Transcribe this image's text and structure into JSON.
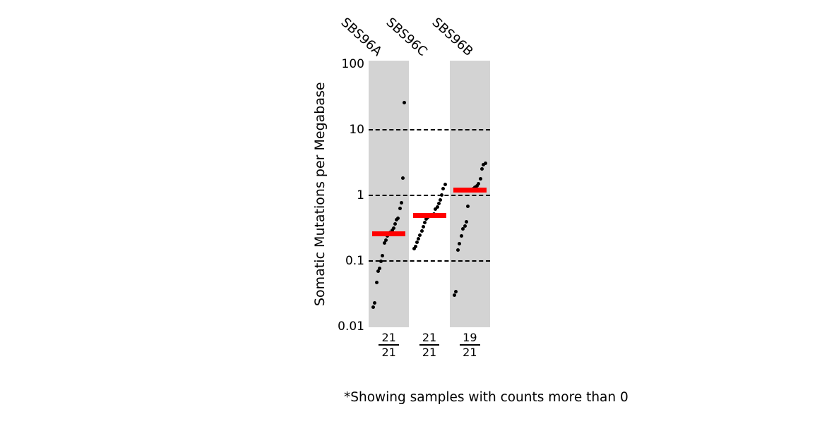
{
  "chart_data": {
    "type": "scatter",
    "subtype": "tmb-strip-plot",
    "title": "",
    "ylabel": "Somatic Mutations per Megabase",
    "yscale": "log",
    "ylim": [
      0.01,
      100
    ],
    "ytick_labels": [
      "100",
      "10",
      "1",
      "0.1",
      "0.01"
    ],
    "ytick_values": [
      100,
      10,
      1,
      0.1,
      0.01
    ],
    "gridline_values": [
      10,
      1,
      0.1
    ],
    "grid_style": "dashed",
    "categories": [
      "SBS96A",
      "SBS96C",
      "SBS96B"
    ],
    "column_shaded": [
      true,
      false,
      true
    ],
    "sample_counts": [
      {
        "shown": "21",
        "total": "21"
      },
      {
        "shown": "21",
        "total": "21"
      },
      {
        "shown": "19",
        "total": "21"
      }
    ],
    "medians": [
      0.26,
      0.49,
      1.2
    ],
    "series": [
      {
        "name": "SBS96A",
        "values": [
          0.02,
          0.023,
          0.047,
          0.07,
          0.077,
          0.099,
          0.12,
          0.19,
          0.21,
          0.24,
          0.26,
          0.27,
          0.29,
          0.32,
          0.37,
          0.43,
          0.45,
          0.63,
          0.78,
          1.84,
          26
        ]
      },
      {
        "name": "SBS96C",
        "values": [
          0.155,
          0.165,
          0.195,
          0.22,
          0.245,
          0.285,
          0.33,
          0.39,
          0.44,
          0.46,
          0.49,
          0.5,
          0.51,
          0.52,
          0.61,
          0.67,
          0.76,
          0.86,
          1.02,
          1.26,
          1.48
        ]
      },
      {
        "name": "SBS96B",
        "values": [
          0.03,
          0.034,
          0.147,
          0.185,
          0.24,
          0.31,
          0.34,
          0.4,
          0.675,
          1.2,
          1.22,
          1.28,
          1.33,
          1.4,
          1.5,
          1.8,
          2.5,
          2.9,
          3.1
        ]
      }
    ],
    "footnote": "*Showing samples with counts more than 0",
    "colors": {
      "shade": "#d3d3d3",
      "median": "#ff0000",
      "point": "#000000",
      "background": "#ffffff"
    }
  }
}
